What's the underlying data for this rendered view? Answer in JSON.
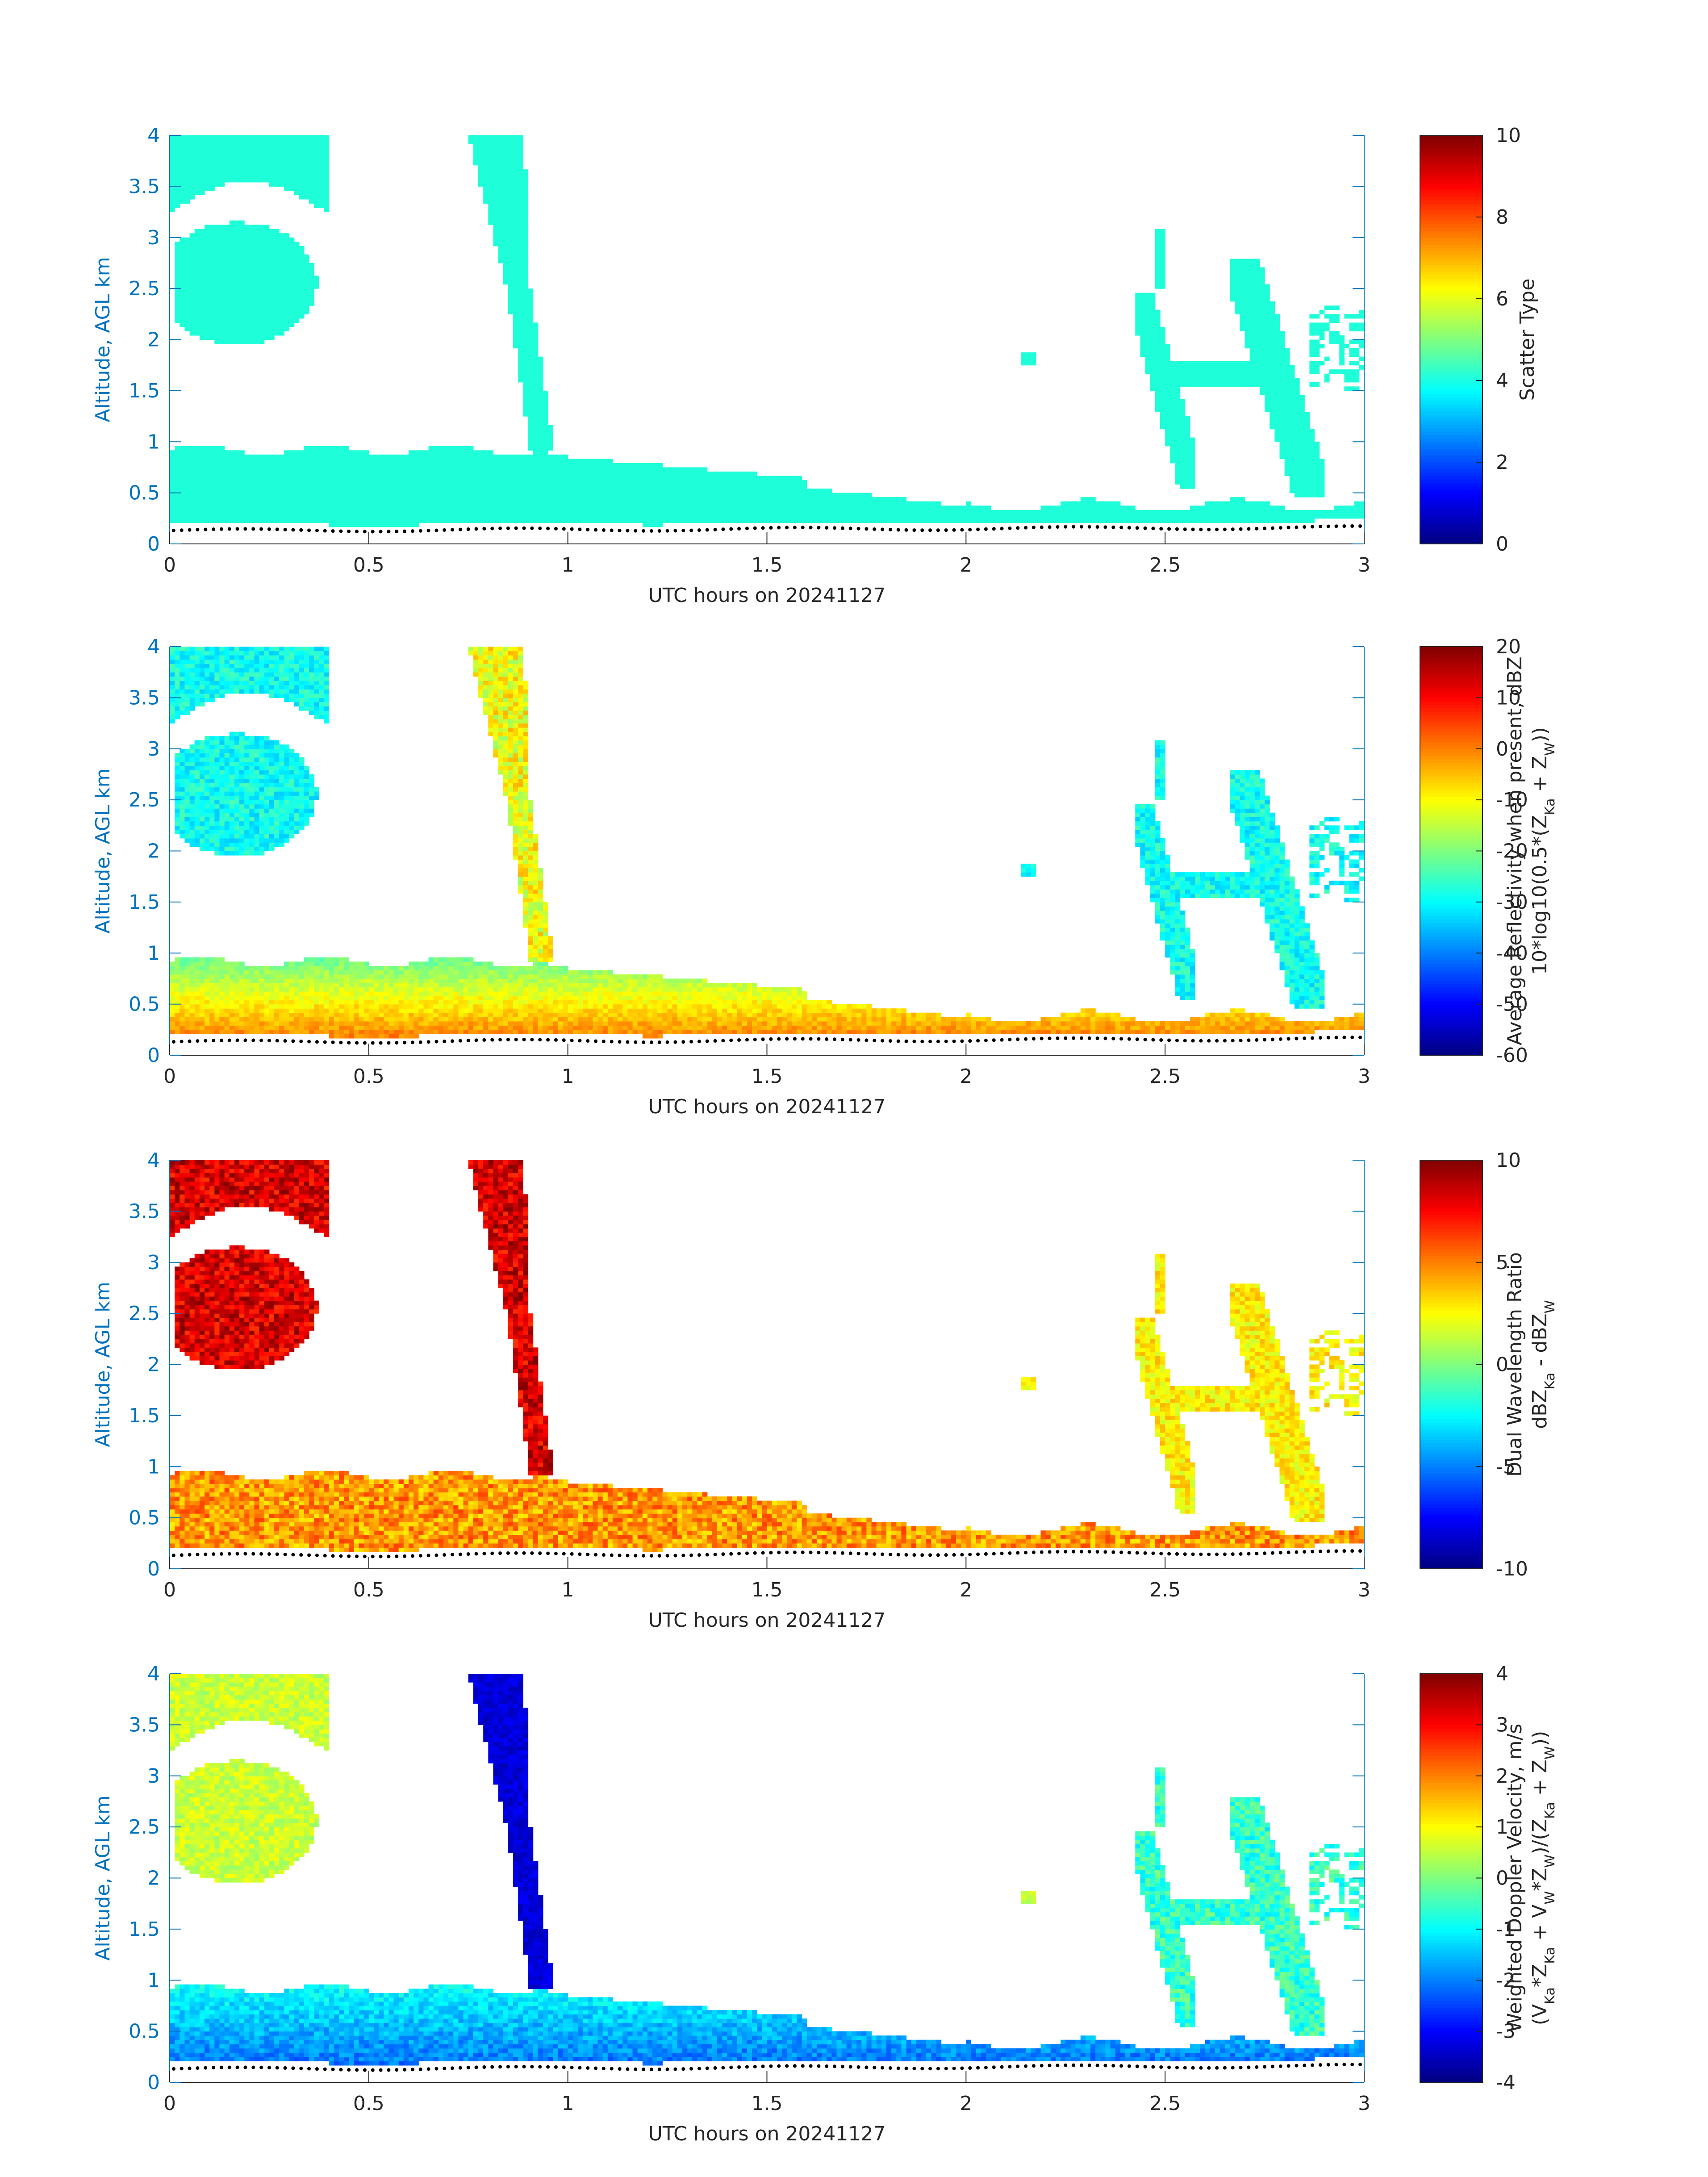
{
  "colors": {
    "axis_blue": "#0072bd",
    "ground_dots": "#000000",
    "scatter_cyan": "#1effd9"
  },
  "chart_data": [
    {
      "type": "heatmap",
      "xlabel": "UTC hours on 20241127",
      "ylabel": "Altitude, AGL km",
      "xlim": [
        0,
        3
      ],
      "ylim": [
        0,
        4
      ],
      "xticks": [
        "0",
        "0.5",
        "1",
        "1.5",
        "2",
        "2.5",
        "3"
      ],
      "yticks": [
        "0",
        "0.5",
        "1",
        "1.5",
        "2",
        "2.5",
        "3",
        "3.5",
        "4"
      ],
      "colorbar": {
        "label_lines": [
          [
            {
              "t": "Scatter Type"
            }
          ]
        ],
        "range": [
          0,
          10
        ],
        "ticks": [
          "0",
          "2",
          "4",
          "6",
          "8",
          "10"
        ],
        "colormap": "jet"
      },
      "field": "scatter_type"
    },
    {
      "type": "heatmap",
      "xlabel": "UTC hours on 20241127",
      "ylabel": "Altitude, AGL km",
      "xlim": [
        0,
        3
      ],
      "ylim": [
        0,
        4
      ],
      "xticks": [
        "0",
        "0.5",
        "1",
        "1.5",
        "2",
        "2.5",
        "3"
      ],
      "yticks": [
        "0",
        "0.5",
        "1",
        "1.5",
        "2",
        "2.5",
        "3",
        "3.5",
        "4"
      ],
      "colorbar": {
        "label_lines": [
          [
            {
              "t": "Average Reflectivity when present, dBZ"
            }
          ],
          [
            {
              "t": "10*log10(0.5*(Z"
            },
            {
              "t": "Ka",
              "sub": true
            },
            {
              "t": " + Z"
            },
            {
              "t": "W",
              "sub": true
            },
            {
              "t": "))"
            }
          ]
        ],
        "range": [
          -60,
          20
        ],
        "ticks": [
          "-60",
          "-50",
          "-40",
          "-30",
          "-20",
          "-10",
          "0",
          "10",
          "20"
        ],
        "colormap": "jet"
      },
      "field": "reflectivity"
    },
    {
      "type": "heatmap",
      "xlabel": "UTC hours on 20241127",
      "ylabel": "Altitude, AGL km",
      "xlim": [
        0,
        3
      ],
      "ylim": [
        0,
        4
      ],
      "xticks": [
        "0",
        "0.5",
        "1",
        "1.5",
        "2",
        "2.5",
        "3"
      ],
      "yticks": [
        "0",
        "0.5",
        "1",
        "1.5",
        "2",
        "2.5",
        "3",
        "3.5",
        "4"
      ],
      "colorbar": {
        "label_lines": [
          [
            {
              "t": "Dual Wavelength Ratio"
            }
          ],
          [
            {
              "t": "dBZ"
            },
            {
              "t": "Ka",
              "sub": true
            },
            {
              "t": " - dBZ"
            },
            {
              "t": "W",
              "sub": true
            }
          ]
        ],
        "range": [
          -10,
          10
        ],
        "ticks": [
          "-10",
          "-5",
          "0",
          "5",
          "10"
        ],
        "colormap": "jet"
      },
      "field": "dwr"
    },
    {
      "type": "heatmap",
      "xlabel": "UTC hours on 20241127",
      "ylabel": "Altitude, AGL km",
      "xlim": [
        0,
        3
      ],
      "ylim": [
        0,
        4
      ],
      "xticks": [
        "0",
        "0.5",
        "1",
        "1.5",
        "2",
        "2.5",
        "3"
      ],
      "yticks": [
        "0",
        "0.5",
        "1",
        "1.5",
        "2",
        "2.5",
        "3",
        "3.5",
        "4"
      ],
      "colorbar": {
        "label_lines": [
          [
            {
              "t": "Weighted Doppler Velocity, m/s"
            }
          ],
          [
            {
              "t": "(V"
            },
            {
              "t": "Ka",
              "sub": true
            },
            {
              "t": "*Z"
            },
            {
              "t": "Ka",
              "sub": true
            },
            {
              "t": " + V"
            },
            {
              "t": "W",
              "sub": true
            },
            {
              "t": "*Z"
            },
            {
              "t": "W",
              "sub": true
            },
            {
              "t": ")/(Z"
            },
            {
              "t": "Ka",
              "sub": true
            },
            {
              "t": " + Z"
            },
            {
              "t": "W",
              "sub": true
            },
            {
              "t": "))"
            }
          ]
        ],
        "range": [
          -4,
          4
        ],
        "ticks": [
          "-4",
          "-3",
          "-2",
          "-1",
          "0",
          "1",
          "2",
          "3",
          "4"
        ],
        "colormap": "jet"
      },
      "field": "velocity"
    }
  ],
  "regions": [
    {
      "name": "boundary-layer",
      "x": [
        0.0,
        3.0
      ],
      "bottom": 0.18
    },
    {
      "name": "cloud-top-left",
      "x": [
        0.0,
        0.4
      ],
      "y": [
        3.2,
        4.0
      ]
    },
    {
      "name": "cloud-left-mid",
      "x": [
        0.0,
        0.38
      ],
      "y": [
        1.9,
        3.15
      ]
    },
    {
      "name": "fall-streak",
      "x": [
        0.75,
        1.0
      ],
      "y": [
        0.25,
        4.0
      ]
    },
    {
      "name": "speck-1",
      "x": [
        2.14,
        2.17
      ],
      "y": [
        1.77,
        1.87
      ]
    },
    {
      "name": "right-plumes",
      "x": [
        2.43,
        3.0
      ],
      "y": [
        0.45,
        3.1
      ]
    }
  ]
}
